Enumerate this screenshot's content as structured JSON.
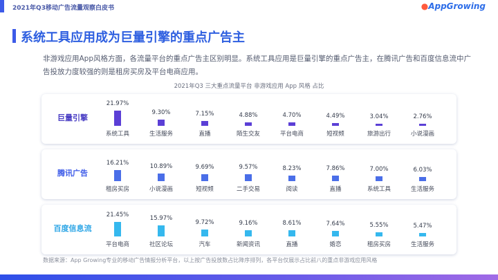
{
  "header": {
    "report_title": "2021年Q3移动广告流量观察白皮书",
    "brand": "AppGrowing"
  },
  "headline": "系统工具应用成为巨量引擎的重点广告主",
  "description": "非游戏应用App风格方面，各流量平台的重点广告主区别明显。系统工具应用是巨量引擎的重点广告主，在腾讯广告和百度信息流中广告投放力度较强的则是租房买房及平台电商应用。",
  "source": "数据来源：App Growing专业的移动广告情报分析平台，以上按广告投放数占比降序排列，各平台仅展示占比前八的重点非游戏应用风格",
  "colors": {
    "accent": "#3d5be8",
    "bar_juliang": "#5b3fd6",
    "bar_tencent": "#4a6ee8",
    "bar_baidu": "#35b8ee"
  },
  "chart_data": {
    "type": "bar",
    "title": "2021年Q3 三大重点流量平台 非游戏应用 App 风格 占比",
    "unit": "%",
    "panels": [
      {
        "name": "巨量引擎",
        "categories": [
          "系统工具",
          "生活服务",
          "直播",
          "陌生交友",
          "平台电商",
          "短视频",
          "旅游出行",
          "小说漫画"
        ],
        "values": [
          21.97,
          9.3,
          7.15,
          4.88,
          4.7,
          4.49,
          3.04,
          2.76
        ],
        "labels": [
          "21.97%",
          "9.30%",
          "7.15%",
          "4.88%",
          "4.70%",
          "4.49%",
          "3.04%",
          "2.76%"
        ]
      },
      {
        "name": "腾讯广告",
        "categories": [
          "租房买房",
          "小说漫画",
          "短视频",
          "二手交易",
          "阅读",
          "直播",
          "系统工具",
          "生活服务"
        ],
        "values": [
          16.21,
          10.89,
          9.69,
          9.57,
          8.23,
          7.86,
          7.0,
          6.03
        ],
        "labels": [
          "16.21%",
          "10.89%",
          "9.69%",
          "9.57%",
          "8.23%",
          "7.86%",
          "7.00%",
          "6.03%"
        ]
      },
      {
        "name": "百度信息流",
        "categories": [
          "平台电商",
          "社区论坛",
          "汽车",
          "新闻资讯",
          "直播",
          "婚恋",
          "租房买房",
          "生活服务"
        ],
        "values": [
          21.45,
          15.97,
          9.72,
          9.16,
          8.61,
          7.64,
          5.55,
          5.47
        ],
        "labels": [
          "21.45%",
          "15.97%",
          "9.72%",
          "9.16%",
          "8.61%",
          "7.64%",
          "5.55%",
          "5.47%"
        ]
      }
    ]
  }
}
